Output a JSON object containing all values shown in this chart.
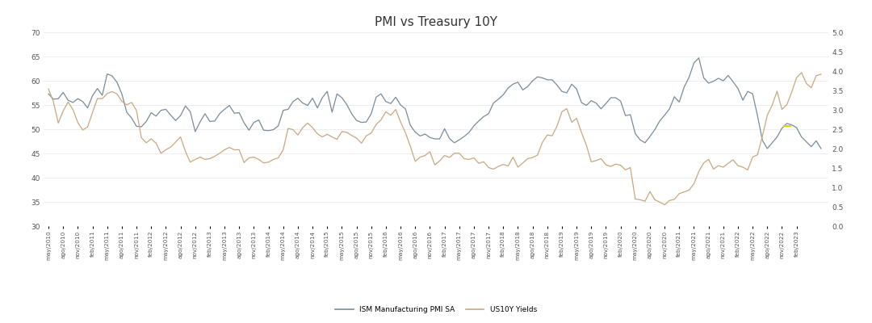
{
  "title": "PMI vs Treasury 10Y",
  "title_fontsize": 11,
  "left_ylim": [
    30,
    70
  ],
  "left_yticks": [
    30,
    35,
    40,
    45,
    50,
    55,
    60,
    65,
    70
  ],
  "right_ylim": [
    0,
    5
  ],
  "right_yticks": [
    0,
    0.5,
    1,
    1.5,
    2,
    2.5,
    3,
    3.5,
    4,
    4.5,
    5
  ],
  "pmi_color": "#7a8b99",
  "yield_color": "#c8a882",
  "yellow_color": "#d4d800",
  "background_color": "#ffffff",
  "legend_pmi": "ISM Manufacturing PMI SA",
  "legend_yield": "US10Y Yields",
  "pmi_data": [
    57.3,
    56.2,
    56.3,
    57.6,
    56.0,
    55.5,
    56.3,
    55.7,
    54.4,
    56.9,
    58.4,
    57.0,
    61.4,
    61.0,
    59.7,
    57.3,
    53.5,
    52.3,
    50.6,
    50.5,
    51.6,
    53.4,
    52.7,
    53.9,
    54.1,
    52.9,
    51.8,
    52.8,
    54.8,
    53.6,
    49.5,
    51.5,
    53.2,
    51.6,
    51.7,
    53.2,
    54.1,
    54.9,
    53.3,
    53.4,
    51.3,
    49.8,
    51.4,
    51.9,
    49.8,
    49.7,
    49.9,
    50.7,
    53.9,
    54.1,
    55.7,
    56.4,
    55.4,
    54.9,
    56.4,
    54.4,
    56.5,
    57.8,
    53.5,
    57.3,
    56.5,
    55.1,
    53.2,
    51.8,
    51.4,
    51.5,
    53.2,
    56.6,
    57.3,
    55.7,
    55.3,
    56.6,
    55.0,
    54.2,
    50.8,
    49.4,
    48.6,
    49.0,
    48.3,
    48.0,
    48.0,
    50.1,
    48.1,
    47.2,
    47.8,
    48.5,
    49.3,
    50.7,
    51.7,
    52.6,
    53.2,
    55.4,
    56.2,
    57.1,
    58.5,
    59.3,
    59.7,
    58.1,
    58.8,
    60.0,
    60.8,
    60.6,
    60.2,
    60.2,
    59.1,
    57.8,
    57.5,
    59.3,
    58.3,
    55.5,
    54.9,
    55.9,
    55.4,
    54.2,
    55.3,
    56.5,
    56.5,
    55.8,
    52.8,
    53.0,
    49.1,
    47.8,
    47.2,
    48.5,
    49.9,
    51.7,
    52.9,
    54.2,
    56.7,
    55.6,
    58.7,
    60.7,
    63.7,
    64.7,
    60.6,
    59.5,
    59.9,
    60.5,
    60.0,
    61.1,
    59.8,
    58.4,
    56.0,
    57.8,
    57.3,
    52.8,
    47.7,
    46.0,
    47.2,
    48.4,
    50.2,
    51.2,
    50.9,
    50.3,
    48.4,
    47.4,
    46.4,
    47.6,
    46.0
  ],
  "yield_data": [
    3.54,
    3.21,
    2.66,
    2.97,
    3.2,
    3.01,
    2.67,
    2.48,
    2.56,
    2.93,
    3.29,
    3.29,
    3.42,
    3.47,
    3.41,
    3.22,
    3.13,
    3.19,
    2.98,
    2.28,
    2.15,
    2.25,
    2.14,
    1.88,
    1.97,
    2.04,
    2.17,
    2.3,
    1.93,
    1.65,
    1.72,
    1.78,
    1.72,
    1.74,
    1.8,
    1.88,
    1.97,
    2.03,
    1.97,
    1.97,
    1.64,
    1.76,
    1.78,
    1.72,
    1.63,
    1.65,
    1.72,
    1.76,
    1.97,
    2.52,
    2.49,
    2.35,
    2.54,
    2.66,
    2.54,
    2.38,
    2.3,
    2.37,
    2.3,
    2.24,
    2.44,
    2.42,
    2.34,
    2.27,
    2.14,
    2.33,
    2.4,
    2.62,
    2.74,
    2.95,
    2.86,
    3.01,
    2.69,
    2.41,
    2.06,
    1.67,
    1.78,
    1.82,
    1.92,
    1.58,
    1.68,
    1.82,
    1.77,
    1.88,
    1.88,
    1.74,
    1.72,
    1.76,
    1.62,
    1.66,
    1.51,
    1.47,
    1.54,
    1.59,
    1.55,
    1.78,
    1.52,
    1.63,
    1.74,
    1.77,
    1.83,
    2.16,
    2.35,
    2.33,
    2.58,
    2.95,
    3.03,
    2.68,
    2.78,
    2.42,
    2.09,
    1.66,
    1.69,
    1.74,
    1.58,
    1.54,
    1.6,
    1.57,
    1.45,
    1.51,
    0.7,
    0.68,
    0.64,
    0.89,
    0.68,
    0.62,
    0.55,
    0.66,
    0.69,
    0.84,
    0.88,
    0.93,
    1.09,
    1.41,
    1.63,
    1.72,
    1.47,
    1.56,
    1.52,
    1.62,
    1.71,
    1.56,
    1.52,
    1.45,
    1.78,
    1.84,
    2.32,
    2.86,
    3.12,
    3.48,
    3.01,
    3.13,
    3.46,
    3.83,
    3.96,
    3.68,
    3.57,
    3.88,
    3.92
  ],
  "x_tick_labels": [
    "may/2010",
    "ago/2010",
    "nov/2010",
    "feb/2011",
    "may/2011",
    "ago/2011",
    "nov/2011",
    "feb/2012",
    "may/2012",
    "ago/2012",
    "nov/2012",
    "feb/2013",
    "may/2013",
    "ago/2013",
    "nov/2013",
    "feb/2014",
    "may/2014",
    "ago/2014",
    "nov/2014",
    "feb/2015",
    "may/2015",
    "ago/2015",
    "nov/2015",
    "feb/2016",
    "may/2016",
    "ago/2016",
    "nov/2016",
    "feb/2017",
    "may/2017",
    "ago/2017",
    "nov/2017",
    "feb/2018",
    "may/2018",
    "ago/2018",
    "nov/2018",
    "feb/2019",
    "may/2019",
    "ago/2019",
    "nov/2019",
    "feb/2020",
    "may/2020",
    "ago/2020",
    "nov/2020",
    "feb/2021",
    "may/2021",
    "ago/2021",
    "nov/2021",
    "feb/2022",
    "may/2022",
    "ago/2022",
    "nov/2022",
    "feb/2023"
  ]
}
